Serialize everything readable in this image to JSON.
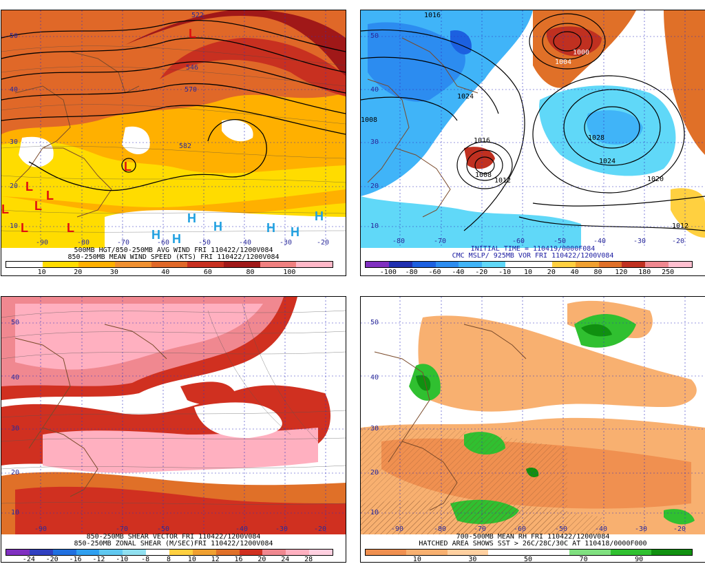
{
  "panels": {
    "tl": {
      "caption1": "500MB HGT/850-250MB AVG WIND FRI 110422/1200V084",
      "caption2": "850-250MB MEAN WIND SPEED (KTS) FRI 110422/1200V084",
      "lon_labels": [
        "-90",
        "-80",
        "-70",
        "-60",
        "-50",
        "-40",
        "-30",
        "-20"
      ],
      "lat_labels": [
        "50",
        "40",
        "30",
        "20",
        "10"
      ],
      "contour_labels": [
        "522",
        "546",
        "570",
        "582"
      ],
      "cbar_ticks": [
        "10",
        "20",
        "30",
        "40",
        "60",
        "80",
        "100"
      ],
      "cbar_colors": [
        "#ffffff",
        "#ffdc00",
        "#ffb000",
        "#f09030",
        "#e06828",
        "#c83020",
        "#a01818",
        "#f08080",
        "#ffb8c8"
      ]
    },
    "tr": {
      "caption1": "INITIAL TIME = 110419/0000F084",
      "caption2": "CMC MSLP/ 925MB VOR FRI 110422/1200V084",
      "lon_labels": [
        "-80",
        "-70",
        "-60",
        "-50",
        "-40",
        "-30",
        "-20"
      ],
      "lat_labels": [
        "50",
        "40",
        "30",
        "20",
        "10"
      ],
      "isobar_labels": [
        "1016",
        "1024",
        "1028",
        "1008",
        "1016",
        "1012",
        "1008",
        "1024",
        "1020",
        "1012",
        "1000",
        "1004"
      ],
      "cbar_ticks": [
        "-100",
        "-80",
        "-60",
        "-40",
        "-20",
        "-10",
        "10",
        "20",
        "40",
        "80",
        "120",
        "180",
        "250"
      ],
      "cbar_colors": [
        "#8030c0",
        "#2030b0",
        "#1c60e0",
        "#2c8cf0",
        "#40b4f8",
        "#60d8f8",
        "#ffffff",
        "#ffffff",
        "#ffd040",
        "#f0a030",
        "#e07028",
        "#c03020",
        "#f08890",
        "#ffc0d0"
      ]
    },
    "bl": {
      "caption1": "850-250MB SHEAR VECTOR FRI 110422/1200V084",
      "caption2": "850-250MB ZONAL SHEAR (M/SEC)FRI 110422/1200V084",
      "lon_labels": [
        "-90",
        "-70",
        "-50",
        "-40",
        "-30",
        "-20"
      ],
      "lat_labels": [
        "50",
        "40",
        "30",
        "20",
        "10"
      ],
      "cbar_ticks": [
        "-24",
        "-20",
        "-16",
        "-12",
        "-10",
        "-8",
        "8",
        "10",
        "12",
        "16",
        "20",
        "24",
        "28"
      ],
      "cbar_colors": [
        "#8030c0",
        "#3040c0",
        "#2070e0",
        "#30a0f0",
        "#60c8f0",
        "#90e0f0",
        "#ffffff",
        "#ffd040",
        "#f0a030",
        "#e07028",
        "#d03020",
        "#f08890",
        "#ffb0c0",
        "#ffd0e0"
      ]
    },
    "br": {
      "caption1": "700-500MB MEAN RH FRI 110422/1200V084",
      "caption2": "HATCHED AREA SHOWS SST > 26C/28C/30C AT 110418/0000F000",
      "lon_labels": [
        "-90",
        "-80",
        "-70",
        "-60",
        "-50",
        "-40",
        "-30",
        "-20"
      ],
      "lat_labels": [
        "50",
        "40",
        "30",
        "20",
        "10"
      ],
      "cbar_ticks": [
        "10",
        "30",
        "50",
        "70",
        "90"
      ],
      "cbar_colors": [
        "#f09050",
        "#f8b070",
        "#ffd0a0",
        "#ffffff",
        "#ffffff",
        "#80e080",
        "#30c030",
        "#109010"
      ]
    }
  }
}
